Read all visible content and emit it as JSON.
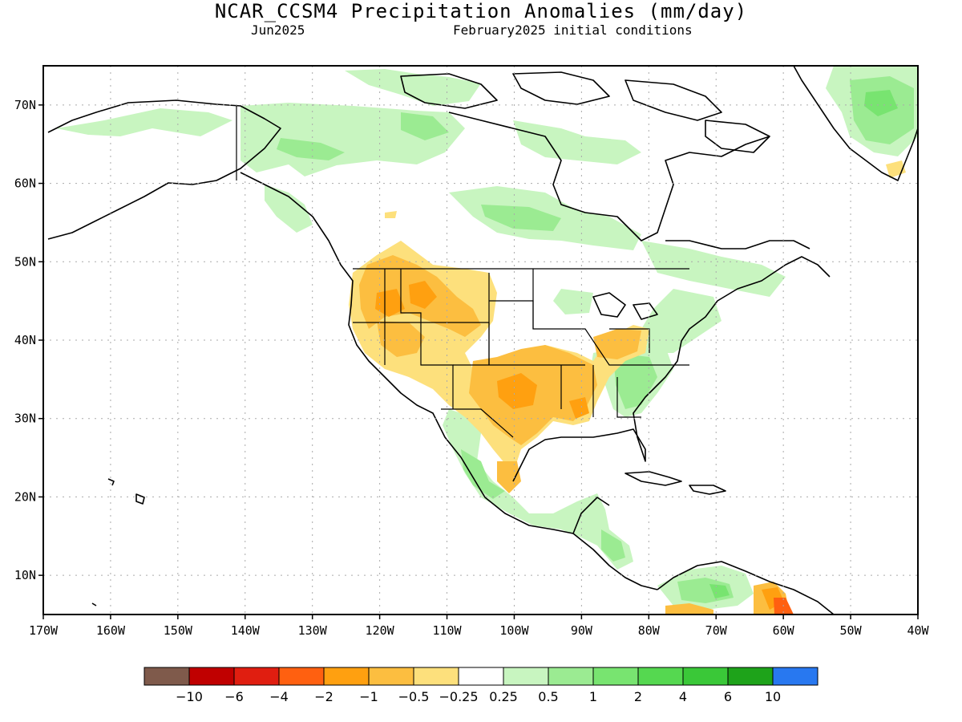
{
  "title": "NCAR_CCSM4 Precipitation Anomalies (mm/day)",
  "subtitle_left": "Jun2025",
  "subtitle_right": "February2025 initial conditions",
  "lat_labels": [
    "70N",
    "60N",
    "50N",
    "40N",
    "30N",
    "20N",
    "10N"
  ],
  "lon_labels": [
    "170W",
    "160W",
    "150W",
    "140W",
    "130W",
    "120W",
    "110W",
    "100W",
    "90W",
    "80W",
    "70W",
    "60W",
    "50W",
    "40W"
  ],
  "colorbar": {
    "colors": [
      "#7f5a4b",
      "#c00000",
      "#e01e10",
      "#ff6010",
      "#ffa010",
      "#fcbe40",
      "#fde07c",
      "#ffffff",
      "#c8f5c0",
      "#9beb92",
      "#78e470",
      "#55d850",
      "#3ac838",
      "#1ea31a",
      "#2878f0"
    ],
    "labels": [
      "−10",
      "−6",
      "−4",
      "−2",
      "−1",
      "−0.5",
      "−0.25",
      "0.25",
      "0.5",
      "1",
      "2",
      "4",
      "6",
      "10"
    ]
  },
  "map": {
    "lon_range": [
      -170,
      -40
    ],
    "lat_range": [
      5,
      75
    ],
    "dry_color_light": "#fde07c",
    "dry_color_mid": "#fcbe40",
    "dry_color_strong": "#ffa010",
    "dry_color_extreme": "#ff6010",
    "wet_color_light": "#c8f5c0",
    "wet_color_mid": "#9beb92",
    "wet_color_strong": "#78e470",
    "wet_color_extreme": "#3ac838"
  }
}
